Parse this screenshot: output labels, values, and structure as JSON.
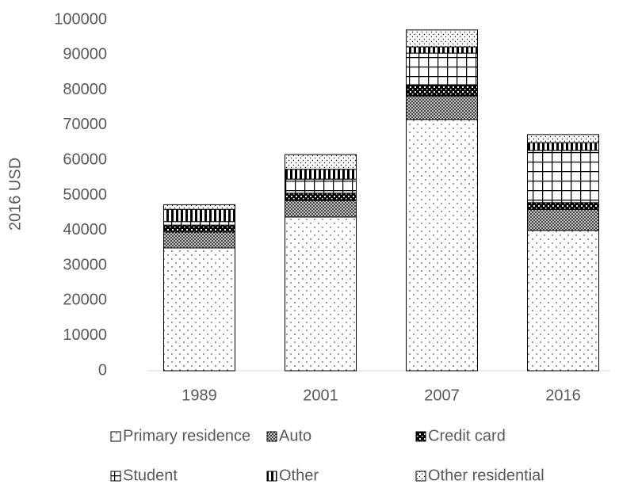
{
  "chart_data": {
    "type": "stacked_bar",
    "y_label": "2016 USD",
    "categories": [
      "1989",
      "2001",
      "2007",
      "2016"
    ],
    "series": [
      {
        "name": "Primary residence",
        "pattern": "sparse-dots",
        "values": [
          35000,
          43800,
          71600,
          40000
        ]
      },
      {
        "name": "Auto",
        "pattern": "crosshatch",
        "values": [
          4500,
          4700,
          6700,
          6000
        ]
      },
      {
        "name": "Credit card",
        "pattern": "checker",
        "values": [
          2000,
          2100,
          3200,
          1900
        ]
      },
      {
        "name": "Student",
        "pattern": "grid",
        "values": [
          1000,
          4000,
          9000,
          14900
        ]
      },
      {
        "name": "Other",
        "pattern": "vstripes",
        "values": [
          3500,
          2800,
          1800,
          2200
        ]
      },
      {
        "name": "Other residential",
        "pattern": "fine-dots",
        "values": [
          1300,
          4200,
          4800,
          2300
        ]
      }
    ],
    "ylim": [
      0,
      100000
    ],
    "yticks": [
      0,
      10000,
      20000,
      30000,
      40000,
      50000,
      60000,
      70000,
      80000,
      90000,
      100000
    ],
    "grid": false
  }
}
